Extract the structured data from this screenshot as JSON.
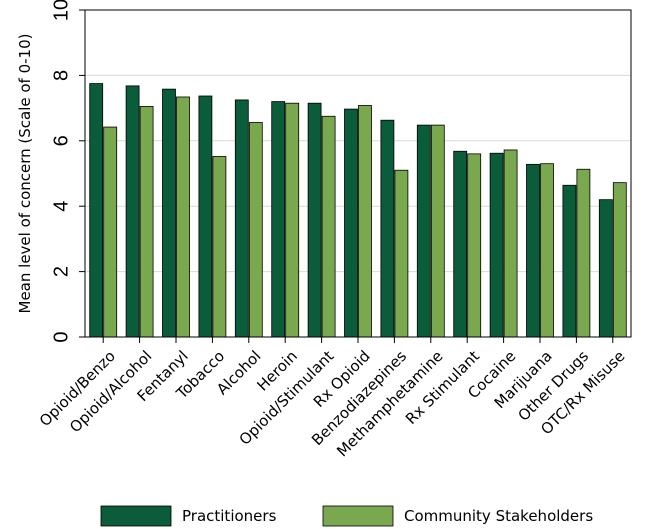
{
  "chart_data": {
    "type": "bar",
    "title": "",
    "xlabel": "",
    "ylabel": "Mean level of concern (Scale of 0-10)",
    "ylim": [
      0,
      10
    ],
    "yticks": [
      0,
      2,
      4,
      6,
      8,
      10
    ],
    "grid": true,
    "legend_position": "bottom",
    "categories": [
      "Opioid/Benzo",
      "Opioid/Alcohol",
      "Fentanyl",
      "Tobacco",
      "Alcohol",
      "Heroin",
      "Opioid/Stimulant",
      "Rx Opioid",
      "Benzodiazepines",
      "Methamphetamine",
      "Rx Stimulant",
      "Cocaine",
      "Marijuana",
      "Other Drugs",
      "OTC/Rx Misuse"
    ],
    "series": [
      {
        "name": "Practitioners",
        "color": "#0b5c3b",
        "values": [
          7.75,
          7.68,
          7.58,
          7.37,
          7.25,
          7.2,
          7.15,
          6.97,
          6.63,
          6.48,
          5.68,
          5.62,
          5.28,
          4.64,
          4.2
        ]
      },
      {
        "name": "Community Stakeholders",
        "color": "#7aa84f",
        "values": [
          6.42,
          7.05,
          7.34,
          5.52,
          6.56,
          7.15,
          6.75,
          7.08,
          5.1,
          6.48,
          5.6,
          5.72,
          5.3,
          5.13,
          4.72
        ]
      }
    ]
  }
}
